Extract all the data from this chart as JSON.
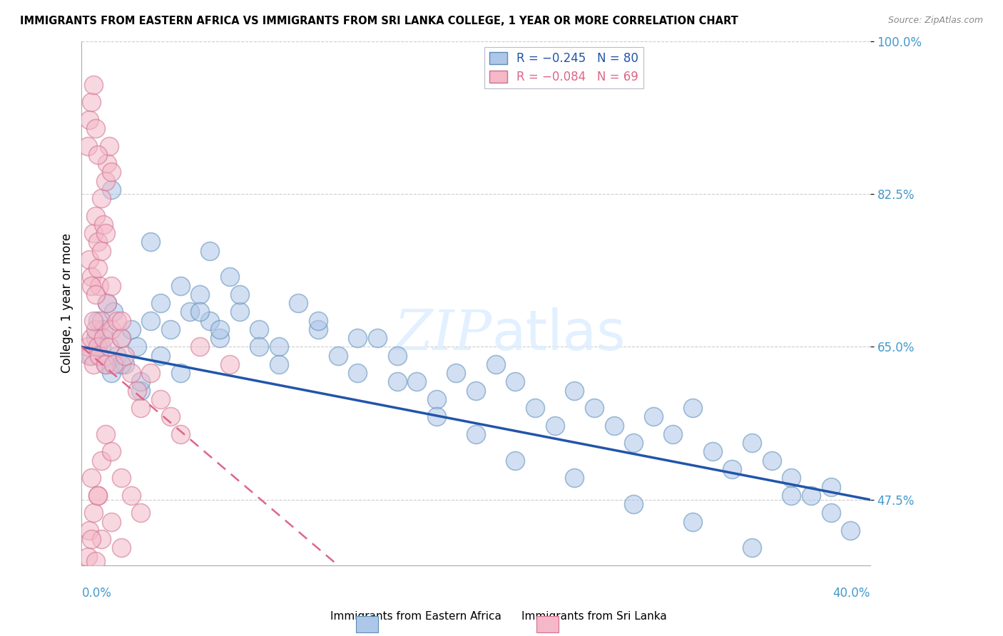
{
  "title": "IMMIGRANTS FROM EASTERN AFRICA VS IMMIGRANTS FROM SRI LANKA COLLEGE, 1 YEAR OR MORE CORRELATION CHART",
  "source": "Source: ZipAtlas.com",
  "ylabel": "College, 1 year or more",
  "xmin": 0.0,
  "xmax": 40.0,
  "ymin": 40.0,
  "ymax": 100.0,
  "yticks": [
    47.5,
    65.0,
    82.5,
    100.0
  ],
  "legend_entry1": "R = −0.245   N = 80",
  "legend_entry2": "R = −0.084   N = 69",
  "series1_color": "#AEC6E8",
  "series1_edge": "#5B8DB8",
  "series2_color": "#F4B8C8",
  "series2_edge": "#D07090",
  "trendline1_color": "#2255AA",
  "trendline2_color": "#DD6688",
  "R1": -0.245,
  "N1": 80,
  "R2": -0.084,
  "N2": 69,
  "blue_x": [
    0.5,
    0.7,
    0.8,
    1.0,
    1.1,
    1.2,
    1.3,
    1.5,
    1.6,
    1.8,
    2.0,
    2.2,
    2.5,
    2.8,
    3.0,
    3.5,
    4.0,
    4.5,
    5.0,
    5.5,
    6.0,
    6.5,
    7.0,
    7.5,
    8.0,
    9.0,
    10.0,
    11.0,
    12.0,
    13.0,
    14.0,
    15.0,
    16.0,
    17.0,
    18.0,
    19.0,
    20.0,
    21.0,
    22.0,
    23.0,
    24.0,
    25.0,
    26.0,
    27.0,
    28.0,
    29.0,
    30.0,
    31.0,
    32.0,
    33.0,
    34.0,
    35.0,
    36.0,
    37.0,
    38.0,
    39.0,
    2.0,
    3.0,
    4.0,
    5.0,
    6.0,
    7.0,
    8.0,
    9.0,
    10.0,
    12.0,
    14.0,
    16.0,
    18.0,
    20.0,
    22.0,
    25.0,
    28.0,
    31.0,
    34.0,
    36.0,
    38.0,
    1.5,
    3.5,
    6.5
  ],
  "blue_y": [
    64.0,
    66.0,
    68.0,
    65.0,
    67.0,
    63.0,
    70.0,
    62.0,
    69.0,
    64.0,
    66.0,
    63.0,
    67.0,
    65.0,
    60.0,
    68.0,
    70.0,
    67.0,
    72.0,
    69.0,
    71.0,
    68.0,
    66.0,
    73.0,
    69.0,
    67.0,
    65.0,
    70.0,
    67.0,
    64.0,
    62.0,
    66.0,
    64.0,
    61.0,
    59.0,
    62.0,
    60.0,
    63.0,
    61.0,
    58.0,
    56.0,
    60.0,
    58.0,
    56.0,
    54.0,
    57.0,
    55.0,
    58.0,
    53.0,
    51.0,
    54.0,
    52.0,
    50.0,
    48.0,
    46.0,
    44.0,
    63.0,
    61.0,
    64.0,
    62.0,
    69.0,
    67.0,
    71.0,
    65.0,
    63.0,
    68.0,
    66.0,
    61.0,
    57.0,
    55.0,
    52.0,
    50.0,
    47.0,
    45.0,
    42.0,
    48.0,
    49.0,
    83.0,
    77.0,
    76.0
  ],
  "pink_x": [
    0.3,
    0.4,
    0.5,
    0.6,
    0.7,
    0.8,
    0.9,
    1.0,
    1.1,
    1.2,
    1.3,
    1.4,
    1.5,
    1.6,
    1.8,
    2.0,
    2.2,
    2.5,
    2.8,
    3.0,
    3.5,
    4.0,
    4.5,
    5.0,
    0.4,
    0.5,
    0.6,
    0.7,
    0.8,
    0.9,
    1.0,
    1.1,
    1.2,
    1.3,
    1.4,
    1.5,
    0.3,
    0.4,
    0.5,
    0.6,
    0.7,
    0.8,
    0.5,
    0.6,
    0.7,
    0.8,
    1.0,
    1.2,
    1.5,
    2.0,
    6.0,
    7.5,
    0.5,
    0.8,
    1.0,
    1.2,
    1.5,
    2.0,
    2.5,
    3.0,
    0.4,
    0.6,
    0.8,
    1.0,
    1.5,
    2.0,
    0.3,
    0.5,
    0.7
  ],
  "pink_y": [
    65.0,
    64.0,
    66.0,
    63.0,
    67.0,
    65.0,
    64.0,
    68.0,
    66.0,
    63.0,
    70.0,
    65.0,
    67.0,
    63.0,
    68.0,
    66.0,
    64.0,
    62.0,
    60.0,
    58.0,
    62.0,
    59.0,
    57.0,
    55.0,
    75.0,
    73.0,
    78.0,
    80.0,
    77.0,
    72.0,
    82.0,
    79.0,
    84.0,
    86.0,
    88.0,
    85.0,
    88.0,
    91.0,
    93.0,
    95.0,
    90.0,
    87.0,
    72.0,
    68.0,
    71.0,
    74.0,
    76.0,
    78.0,
    72.0,
    68.0,
    65.0,
    63.0,
    50.0,
    48.0,
    52.0,
    55.0,
    53.0,
    50.0,
    48.0,
    46.0,
    44.0,
    46.0,
    48.0,
    43.0,
    45.0,
    42.0,
    41.0,
    43.0,
    40.5
  ]
}
